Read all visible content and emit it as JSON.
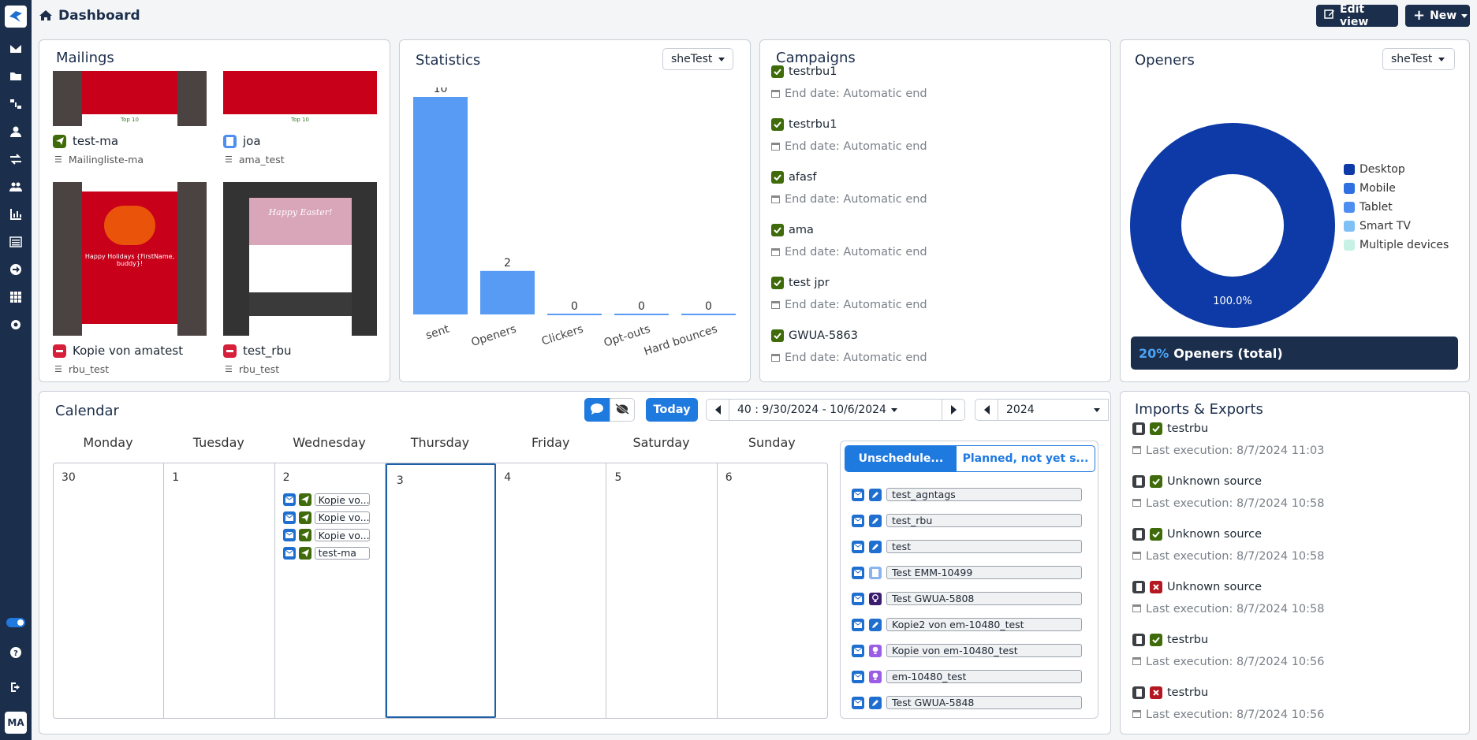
{
  "header": {
    "title": "Dashboard",
    "edit_view": "Edit view",
    "new": "New"
  },
  "user": {
    "initials": "MA"
  },
  "mailings": {
    "title": "Mailings",
    "items": [
      {
        "name": "test-ma",
        "list": "Mailingliste-ma",
        "status": "sent-icon",
        "thumb_text": "Top 10"
      },
      {
        "name": "joa",
        "list": "ama_test",
        "status": "document-icon",
        "thumb_text": "Top 10"
      },
      {
        "name": "Kopie von amatest",
        "list": "rbu_test",
        "status": "stop-icon",
        "thumb_text": "Happy Holidays {FirstName, buddy}!"
      },
      {
        "name": "test_rbu",
        "list": "rbu_test",
        "status": "stop-icon",
        "thumb_text": "Happy Easter!"
      }
    ]
  },
  "statistics": {
    "title": "Statistics",
    "select": "sheTest"
  },
  "chart_data": {
    "type": "bar",
    "categories": [
      "sent",
      "Openers",
      "Clickers",
      "Opt-outs",
      "Hard bounces"
    ],
    "values": [
      10,
      2,
      0,
      0,
      0
    ],
    "title": "",
    "ylim": [
      0,
      10
    ]
  },
  "campaigns": {
    "title": "Campaigns",
    "items": [
      {
        "name": "testrbu1",
        "end": "End date: Automatic end"
      },
      {
        "name": "testrbu1",
        "end": "End date: Automatic end"
      },
      {
        "name": "afasf",
        "end": "End date: Automatic end"
      },
      {
        "name": "ama",
        "end": "End date: Automatic end"
      },
      {
        "name": "test jpr",
        "end": "End date: Automatic end"
      },
      {
        "name": "GWUA-5863",
        "end": "End date: Automatic end"
      }
    ]
  },
  "openers": {
    "title": "Openers",
    "select": "sheTest",
    "donut_label": "100.0%",
    "legend": [
      "Desktop",
      "Mobile",
      "Tablet",
      "Smart TV",
      "Multiple devices"
    ],
    "legend_colors": [
      "#0d3aa6",
      "#2f6fe0",
      "#4d8ef0",
      "#7fc0f5",
      "#c7f1e5"
    ],
    "slices": [
      100,
      0,
      0,
      0,
      0
    ],
    "total_pct": "20%",
    "total_label": "Openers (total)"
  },
  "calendar": {
    "title": "Calendar",
    "today": "Today",
    "week": "40 : 9/30/2024 - 10/6/2024",
    "year": "2024",
    "days": [
      "Monday",
      "Tuesday",
      "Wednesday",
      "Thursday",
      "Friday",
      "Saturday",
      "Sunday"
    ],
    "dates": [
      "30",
      "1",
      "2",
      "3",
      "4",
      "5",
      "6"
    ],
    "events": [
      "Kopie vo...",
      "Kopie vo...",
      "Kopie vo...",
      "test-ma"
    ],
    "tabs": [
      "Unschedule...",
      "Planned, not yet s..."
    ],
    "unscheduled": [
      {
        "label": "test_agntags",
        "type": "pencil"
      },
      {
        "label": "test_rbu",
        "type": "pencil"
      },
      {
        "label": "test",
        "type": "pencil"
      },
      {
        "label": "Test EMM-10499",
        "type": "doc"
      },
      {
        "label": "Test GWUA-5808",
        "type": "bulb-dark"
      },
      {
        "label": "Kopie2 von em-10480_test",
        "type": "pencil"
      },
      {
        "label": "Kopie von em-10480_test",
        "type": "bulb"
      },
      {
        "label": "em-10480_test",
        "type": "bulb"
      },
      {
        "label": "Test GWUA-5848",
        "type": "pencil"
      }
    ]
  },
  "imports": {
    "title": "Imports & Exports",
    "items": [
      {
        "name": "testrbu",
        "time": "Last execution: 8/7/2024 11:03",
        "ok": true
      },
      {
        "name": "Unknown source",
        "time": "Last execution: 8/7/2024 10:58",
        "ok": true
      },
      {
        "name": "Unknown source",
        "time": "Last execution: 8/7/2024 10:58",
        "ok": true
      },
      {
        "name": "Unknown source",
        "time": "Last execution: 8/7/2024 10:58",
        "ok": false
      },
      {
        "name": "testrbu",
        "time": "Last execution: 8/7/2024 10:56",
        "ok": true
      },
      {
        "name": "testrbu",
        "time": "Last execution: 8/7/2024 10:56",
        "ok": false
      }
    ]
  }
}
